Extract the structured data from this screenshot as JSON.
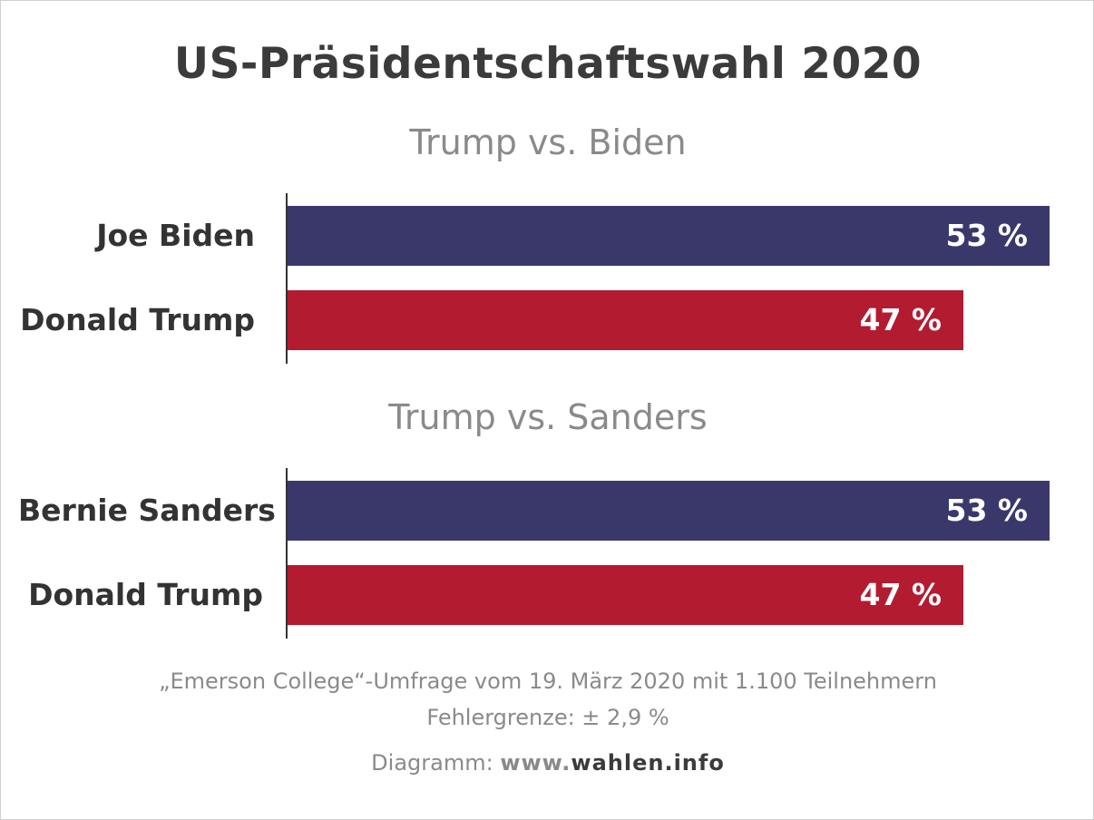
{
  "colors": {
    "biden_sanders": "#3a386b",
    "trump": "#b31b30"
  },
  "chart_data": {
    "type": "bar",
    "orientation": "horizontal",
    "title": "US-Präsidentschaftswahl 2020",
    "xlim": [
      0,
      53
    ],
    "panels": [
      {
        "subtitle": "Trump vs. Biden",
        "categories": [
          "Joe Biden",
          "Donald Trump"
        ],
        "values": [
          53,
          47
        ],
        "labels": [
          "53 %",
          "47 %"
        ],
        "colors": [
          "#3a386b",
          "#b31b30"
        ]
      },
      {
        "subtitle": "Trump vs. Sanders",
        "categories": [
          "Bernie Sanders",
          "Donald Trump"
        ],
        "values": [
          53,
          47
        ],
        "labels": [
          "53 %",
          "47 %"
        ],
        "colors": [
          "#3a386b",
          "#b31b30"
        ]
      }
    ]
  },
  "footer": {
    "source": "„Emerson College“-Umfrage vom 19. März 2020 mit 1.100 Teilnehmern",
    "margin": "Fehlergrenze: ± 2,9 %",
    "credit_prefix": "Diagramm: ",
    "credit_www": "www.",
    "credit_domain": "wahlen.info"
  }
}
